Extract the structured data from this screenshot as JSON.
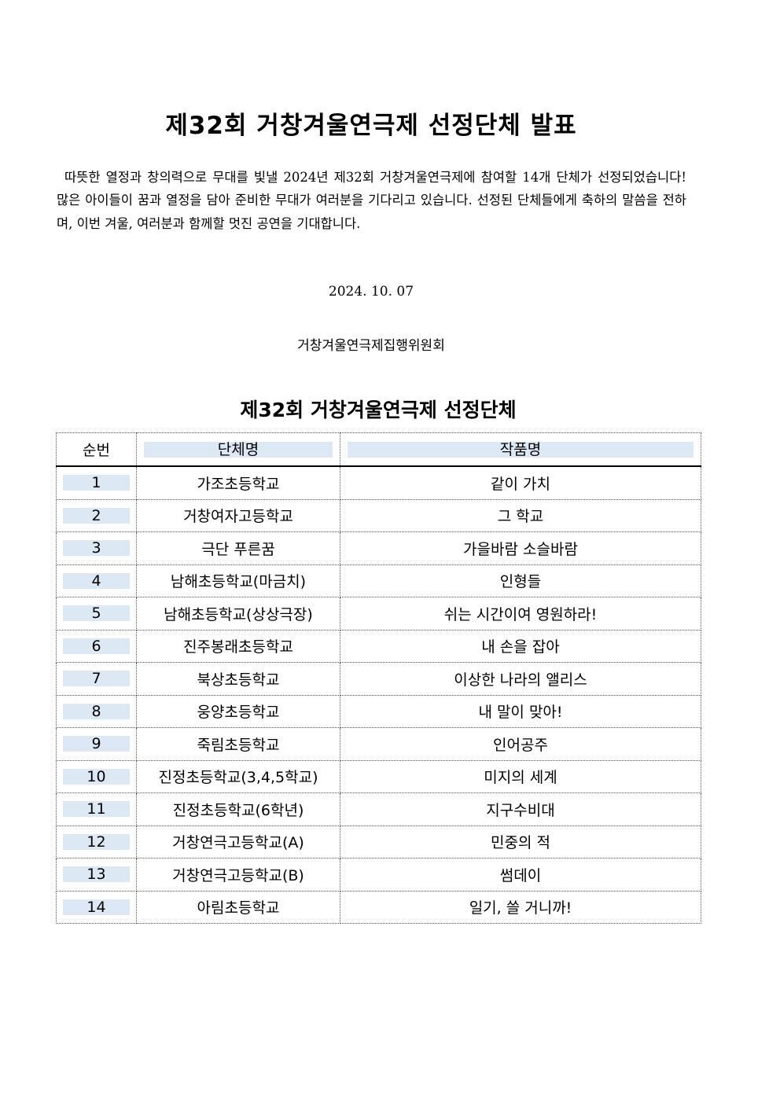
{
  "title": "제32회 거창겨울연극제 선정단체 발표",
  "intro": "따뜻한 열정과 창의력으로 무대를 빛낼 2024년 제32회 거창겨울연극제에 참여할 14개 단체가 선정되었습니다! 많은 아이들이 꿈과 열정을 담아 준비한 무대가 여러분을 기다리고 있습니다. 선정된 단체들에게 축하의 말씀을 전하며, 이번 겨울, 여러분과 함께할 멋진 공연을 기대합니다.",
  "date": "2024. 10. 07",
  "organizer": "거창겨울연극제집행위원회",
  "table": {
    "title": "제32회 거창겨울연극제 선정단체",
    "headers": [
      "순번",
      "단체명",
      "작품명"
    ],
    "rows": [
      [
        "1",
        "가조초등학교",
        "같이 가치"
      ],
      [
        "2",
        "거창여자고등학교",
        "그 학교"
      ],
      [
        "3",
        "극단 푸른꿈",
        "가을바람 소슬바람"
      ],
      [
        "4",
        "남해초등학교(마금치)",
        "인형들"
      ],
      [
        "5",
        "남해초등학교(상상극장)",
        "쉬는 시간이여 영원하라!"
      ],
      [
        "6",
        "진주봉래초등학교",
        "내 손을 잡아"
      ],
      [
        "7",
        "북상초등학교",
        "이상한 나라의 앨리스"
      ],
      [
        "8",
        "웅양초등학교",
        "내 말이 맞아!"
      ],
      [
        "9",
        "죽림초등학교",
        "인어공주"
      ],
      [
        "10",
        "진정초등학교(3,4,5학교)",
        "미지의 세계"
      ],
      [
        "11",
        "진정초등학교(6학년)",
        "지구수비대"
      ],
      [
        "12",
        "거창연극고등학교(A)",
        "민중의 적"
      ],
      [
        "13",
        "거창연극고등학교(B)",
        "썸데이"
      ],
      [
        "14",
        "아림초등학교",
        "일기, 쓸 거니까!"
      ]
    ]
  }
}
